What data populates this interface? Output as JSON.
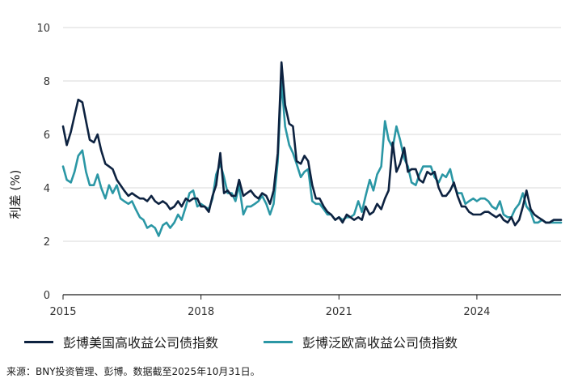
{
  "chart_data": {
    "type": "line",
    "ylabel": "利差 (%)",
    "ylim": [
      0,
      10
    ],
    "yticks": [
      "0",
      "2",
      "4",
      "6",
      "8",
      "10"
    ],
    "xlim": [
      2015.0,
      2025.83
    ],
    "xticks": [
      {
        "label": "2015",
        "value": 2015
      },
      {
        "label": "2018",
        "value": 2018
      },
      {
        "label": "2021",
        "value": 2021
      },
      {
        "label": "2024",
        "value": 2024
      }
    ],
    "grid": "horizontal",
    "legend_position": "bottom",
    "series": [
      {
        "name": "彭博美国高收益公司债指数",
        "color": "#0d2240",
        "x": [
          2015.0,
          2015.08,
          2015.17,
          2015.25,
          2015.33,
          2015.42,
          2015.5,
          2015.58,
          2015.67,
          2015.75,
          2015.83,
          2015.92,
          2016.0,
          2016.08,
          2016.17,
          2016.25,
          2016.33,
          2016.42,
          2016.5,
          2016.58,
          2016.67,
          2016.75,
          2016.83,
          2016.92,
          2017.0,
          2017.08,
          2017.17,
          2017.25,
          2017.33,
          2017.42,
          2017.5,
          2017.58,
          2017.67,
          2017.75,
          2017.83,
          2017.92,
          2018.0,
          2018.08,
          2018.17,
          2018.25,
          2018.33,
          2018.42,
          2018.5,
          2018.58,
          2018.67,
          2018.75,
          2018.83,
          2018.92,
          2019.0,
          2019.08,
          2019.17,
          2019.25,
          2019.33,
          2019.42,
          2019.5,
          2019.58,
          2019.67,
          2019.75,
          2019.83,
          2019.92,
          2020.0,
          2020.08,
          2020.17,
          2020.25,
          2020.33,
          2020.42,
          2020.5,
          2020.58,
          2020.67,
          2020.75,
          2020.83,
          2020.92,
          2021.0,
          2021.08,
          2021.17,
          2021.25,
          2021.33,
          2021.42,
          2021.5,
          2021.58,
          2021.67,
          2021.75,
          2021.83,
          2021.92,
          2022.0,
          2022.08,
          2022.17,
          2022.25,
          2022.33,
          2022.42,
          2022.5,
          2022.58,
          2022.67,
          2022.75,
          2022.83,
          2022.92,
          2023.0,
          2023.08,
          2023.17,
          2023.25,
          2023.33,
          2023.42,
          2023.5,
          2023.58,
          2023.67,
          2023.75,
          2023.83,
          2023.92,
          2024.0,
          2024.08,
          2024.17,
          2024.25,
          2024.33,
          2024.42,
          2024.5,
          2024.58,
          2024.67,
          2024.75,
          2024.83,
          2024.92,
          2025.0,
          2025.08,
          2025.17,
          2025.25,
          2025.33,
          2025.42,
          2025.5,
          2025.58,
          2025.67,
          2025.75,
          2025.83
        ],
        "y": [
          6.3,
          5.6,
          6.1,
          6.7,
          7.3,
          7.2,
          6.5,
          5.8,
          5.7,
          6.0,
          5.4,
          4.9,
          4.8,
          4.7,
          4.3,
          4.1,
          3.9,
          3.7,
          3.8,
          3.7,
          3.6,
          3.6,
          3.5,
          3.7,
          3.5,
          3.4,
          3.5,
          3.4,
          3.2,
          3.3,
          3.5,
          3.3,
          3.6,
          3.5,
          3.6,
          3.6,
          3.3,
          3.3,
          3.1,
          3.7,
          4.1,
          5.3,
          3.8,
          3.9,
          3.7,
          3.7,
          4.3,
          3.7,
          3.8,
          3.9,
          3.7,
          3.6,
          3.8,
          3.7,
          3.4,
          3.9,
          5.3,
          8.7,
          7.1,
          6.4,
          6.3,
          5.0,
          4.9,
          5.2,
          5.0,
          4.1,
          3.6,
          3.6,
          3.3,
          3.1,
          3.0,
          2.8,
          2.9,
          2.7,
          3.0,
          2.9,
          2.8,
          2.9,
          2.8,
          3.3,
          3.0,
          3.1,
          3.4,
          3.2,
          3.6,
          3.9,
          5.7,
          4.6,
          4.9,
          5.5,
          4.6,
          4.7,
          4.7,
          4.3,
          4.2,
          4.6,
          4.5,
          4.6,
          4.0,
          3.7,
          3.7,
          3.9,
          4.2,
          3.7,
          3.3,
          3.3,
          3.1,
          3.0,
          3.0,
          3.0,
          3.1,
          3.1,
          3.0,
          2.9,
          3.0,
          2.8,
          2.7,
          2.9,
          2.6,
          2.8,
          3.3,
          3.9,
          3.2,
          3.0,
          2.9,
          2.8,
          2.7,
          2.7,
          2.8,
          2.8,
          2.8
        ]
      },
      {
        "name": "彭博泛欧高收益公司债指数",
        "color": "#2b97a5",
        "x": [
          2015.0,
          2015.08,
          2015.17,
          2015.25,
          2015.33,
          2015.42,
          2015.5,
          2015.58,
          2015.67,
          2015.75,
          2015.83,
          2015.92,
          2016.0,
          2016.08,
          2016.17,
          2016.25,
          2016.33,
          2016.42,
          2016.5,
          2016.58,
          2016.67,
          2016.75,
          2016.83,
          2016.92,
          2017.0,
          2017.08,
          2017.17,
          2017.25,
          2017.33,
          2017.42,
          2017.5,
          2017.58,
          2017.67,
          2017.75,
          2017.83,
          2017.92,
          2018.0,
          2018.08,
          2018.17,
          2018.25,
          2018.33,
          2018.42,
          2018.5,
          2018.58,
          2018.67,
          2018.75,
          2018.83,
          2018.92,
          2019.0,
          2019.08,
          2019.17,
          2019.25,
          2019.33,
          2019.42,
          2019.5,
          2019.58,
          2019.67,
          2019.75,
          2019.83,
          2019.92,
          2020.0,
          2020.08,
          2020.17,
          2020.25,
          2020.33,
          2020.42,
          2020.5,
          2020.58,
          2020.67,
          2020.75,
          2020.83,
          2020.92,
          2021.0,
          2021.08,
          2021.17,
          2021.25,
          2021.33,
          2021.42,
          2021.5,
          2021.58,
          2021.67,
          2021.75,
          2021.83,
          2021.92,
          2022.0,
          2022.08,
          2022.17,
          2022.25,
          2022.33,
          2022.42,
          2022.5,
          2022.58,
          2022.67,
          2022.75,
          2022.83,
          2022.92,
          2023.0,
          2023.08,
          2023.17,
          2023.25,
          2023.33,
          2023.42,
          2023.5,
          2023.58,
          2023.67,
          2023.75,
          2023.83,
          2023.92,
          2024.0,
          2024.08,
          2024.17,
          2024.25,
          2024.33,
          2024.42,
          2024.5,
          2024.58,
          2024.67,
          2024.75,
          2024.83,
          2024.92,
          2025.0,
          2025.08,
          2025.17,
          2025.25,
          2025.33,
          2025.42,
          2025.5,
          2025.58,
          2025.67,
          2025.75,
          2025.83
        ],
        "y": [
          4.8,
          4.3,
          4.2,
          4.6,
          5.2,
          5.4,
          4.6,
          4.1,
          4.1,
          4.5,
          4.0,
          3.6,
          4.1,
          3.8,
          4.1,
          3.6,
          3.5,
          3.4,
          3.5,
          3.2,
          2.9,
          2.8,
          2.5,
          2.6,
          2.5,
          2.2,
          2.6,
          2.7,
          2.5,
          2.7,
          3.0,
          2.8,
          3.3,
          3.8,
          3.9,
          3.3,
          3.4,
          3.3,
          3.2,
          3.6,
          4.5,
          4.9,
          4.4,
          3.8,
          3.8,
          3.5,
          4.1,
          3.0,
          3.3,
          3.3,
          3.4,
          3.5,
          3.7,
          3.4,
          3.0,
          3.4,
          5.0,
          8.0,
          6.3,
          5.6,
          5.3,
          4.9,
          4.4,
          4.6,
          4.7,
          3.5,
          3.4,
          3.4,
          3.2,
          3.0,
          3.0,
          2.8,
          2.9,
          2.8,
          2.9,
          2.9,
          3.0,
          3.5,
          3.1,
          3.7,
          4.3,
          3.9,
          4.5,
          4.8,
          6.5,
          5.8,
          5.5,
          6.3,
          5.8,
          5.1,
          4.8,
          4.2,
          4.1,
          4.5,
          4.8,
          4.8,
          4.8,
          4.4,
          4.2,
          4.5,
          4.4,
          4.7,
          4.1,
          3.8,
          3.8,
          3.4,
          3.5,
          3.6,
          3.5,
          3.6,
          3.6,
          3.5,
          3.3,
          3.2,
          3.5,
          3.0,
          2.9,
          2.9,
          3.2,
          3.4,
          3.8,
          3.3,
          3.1,
          2.7,
          2.7,
          2.8,
          2.7,
          2.7,
          2.7,
          2.7,
          2.7
        ]
      }
    ]
  },
  "source_note": "来源：BNY投资管理、彭博。数据截至2025年10月31日。"
}
